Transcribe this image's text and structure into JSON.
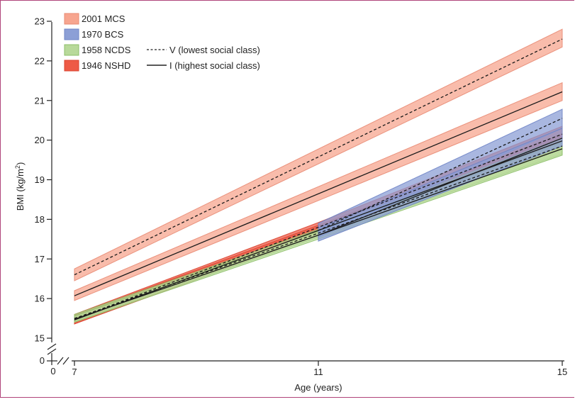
{
  "chart_data": {
    "type": "line",
    "title": "",
    "xlabel": "Age (years)",
    "ylabel": "BMI (kg/m²)",
    "ylabel_main": "BMI (kg/m",
    "ylabel_sup": "2",
    "ylabel_close": ")",
    "xlim": [
      7,
      15
    ],
    "ylim": [
      15,
      23
    ],
    "x_ticks": [
      {
        "value": 7,
        "label": "7"
      },
      {
        "value": 11,
        "label": "11"
      },
      {
        "value": 15,
        "label": "15"
      }
    ],
    "x_zero_label": "0",
    "y_zero_label": "0",
    "y_ticks": [
      15,
      16,
      17,
      18,
      19,
      20,
      21,
      22,
      23
    ],
    "grid": false,
    "legend_placement": "top-left",
    "cohorts": [
      {
        "name": "2001 MCS",
        "fill": "#f7a58f",
        "stroke": "#e88a73"
      },
      {
        "name": "1970 BCS",
        "fill": "#8c9fd6",
        "stroke": "#6f84c6"
      },
      {
        "name": "1958 NCDS",
        "fill": "#b8d99a",
        "stroke": "#8cbf68"
      },
      {
        "name": "1946 NSHD",
        "fill": "#ee5a46",
        "stroke": "#d9432f"
      }
    ],
    "line_styles": [
      {
        "name": "V (lowest social class)",
        "dash": true
      },
      {
        "name": "I (highest social class)",
        "dash": false
      }
    ],
    "series": [
      {
        "cohort": "2001 MCS",
        "class": "V",
        "x": [
          7,
          15
        ],
        "y": [
          16.6,
          22.55
        ],
        "lower": [
          16.45,
          22.35
        ],
        "upper": [
          16.75,
          22.8
        ]
      },
      {
        "cohort": "2001 MCS",
        "class": "I",
        "x": [
          7,
          15
        ],
        "y": [
          16.07,
          21.22
        ],
        "lower": [
          15.95,
          21.0
        ],
        "upper": [
          16.2,
          21.45
        ]
      },
      {
        "cohort": "1946 NSHD",
        "class": "V",
        "x": [
          7,
          11,
          15
        ],
        "y": [
          15.48,
          17.8,
          20.15
        ],
        "lower": [
          15.36,
          17.68,
          19.95
        ],
        "upper": [
          15.6,
          17.92,
          20.35
        ]
      },
      {
        "cohort": "1946 NSHD",
        "class": "I",
        "x": [
          7,
          11,
          15
        ],
        "y": [
          15.46,
          17.72,
          19.98
        ],
        "lower": [
          15.36,
          17.6,
          19.8
        ],
        "upper": [
          15.58,
          17.85,
          20.15
        ]
      },
      {
        "cohort": "1958 NCDS",
        "class": "V",
        "x": [
          7,
          11,
          15
        ],
        "y": [
          15.5,
          17.65,
          19.85
        ],
        "lower": [
          15.42,
          17.55,
          19.65
        ],
        "upper": [
          15.6,
          17.75,
          20.05
        ]
      },
      {
        "cohort": "1958 NCDS",
        "class": "I",
        "x": [
          7,
          11,
          15
        ],
        "y": [
          15.48,
          17.6,
          19.78
        ],
        "lower": [
          15.4,
          17.5,
          19.62
        ],
        "upper": [
          15.56,
          17.7,
          19.95
        ]
      },
      {
        "cohort": "1970 BCS",
        "class": "V",
        "x": [
          11,
          15
        ],
        "y": [
          17.72,
          20.55
        ],
        "lower": [
          17.55,
          20.3
        ],
        "upper": [
          17.9,
          20.78
        ]
      },
      {
        "cohort": "1970 BCS",
        "class": "I",
        "x": [
          11,
          15
        ],
        "y": [
          17.6,
          20.05
        ],
        "lower": [
          17.45,
          19.85
        ],
        "upper": [
          17.78,
          20.3
        ]
      }
    ]
  }
}
